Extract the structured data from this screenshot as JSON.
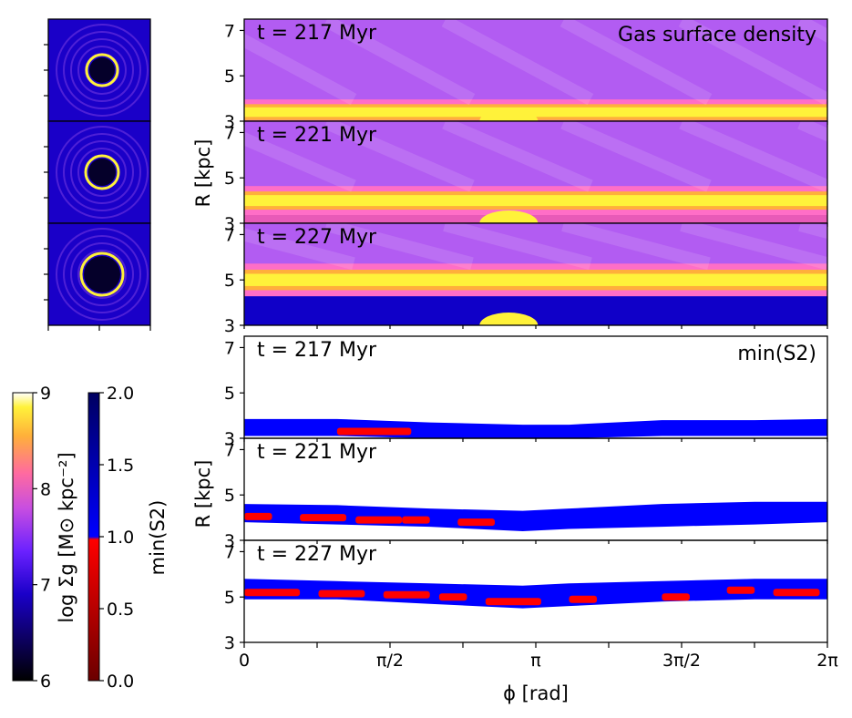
{
  "chart_data": [
    {
      "type": "heatmap",
      "title": "Gas surface density",
      "ylabel": "R [kpc]",
      "xlabel": "ϕ [rad]",
      "xlim": [
        0,
        6.2832
      ],
      "ylim": [
        3,
        7.5
      ],
      "x_ticks": [
        "0",
        "π/2",
        "π",
        "3π/2",
        "2π"
      ],
      "colorbar": {
        "label": "log Σg [M⊙ kpc⁻²]",
        "ticks": [
          "6",
          "7",
          "8",
          "9"
        ],
        "range": [
          6,
          9
        ]
      },
      "panels": [
        {
          "label": "t = 217 Myr",
          "y_ticks": [
            "3",
            "5",
            "7"
          ],
          "ring_radius": 3.4,
          "ring_width": 0.35
        },
        {
          "label": "t = 221 Myr",
          "y_ticks": [
            "3",
            "5",
            "7"
          ],
          "ring_radius": 4.0,
          "ring_width": 0.4
        },
        {
          "label": "t = 227 Myr",
          "y_ticks": [
            "3",
            "5",
            "7"
          ],
          "ring_radius": 5.0,
          "ring_width": 0.45
        }
      ]
    },
    {
      "type": "heatmap",
      "title": "min(S2)",
      "ylabel": "R [kpc]",
      "xlabel": "ϕ [rad]",
      "xlim": [
        0,
        6.2832
      ],
      "ylim": [
        3,
        7.5
      ],
      "x_ticks": [
        "0",
        "π/2",
        "π",
        "3π/2",
        "2π"
      ],
      "colorbar": {
        "label": "min(S2)",
        "ticks": [
          "0.0",
          "0.5",
          "1.0",
          "1.5",
          "2.0"
        ],
        "range": [
          0,
          2
        ]
      },
      "panels": [
        {
          "label": "t = 217 Myr",
          "y_ticks": [
            "3",
            "5",
            "7"
          ],
          "band": [
            [
              0.0,
              3.1,
              3.85
            ],
            [
              1.0,
              3.1,
              3.85
            ],
            [
              2.0,
              3.0,
              3.7
            ],
            [
              3.0,
              2.9,
              3.6
            ],
            [
              3.5,
              3.0,
              3.6
            ],
            [
              4.5,
              3.1,
              3.8
            ],
            [
              5.5,
              3.1,
              3.8
            ],
            [
              6.2832,
              3.1,
              3.85
            ]
          ],
          "low": [
            [
              1.0,
              1.8,
              3.3
            ],
            [
              2.7,
              3.0,
              2.6
            ]
          ]
        },
        {
          "label": "t = 221 Myr",
          "y_ticks": [
            "3",
            "5",
            "7"
          ],
          "band": [
            [
              0.0,
              3.8,
              4.6
            ],
            [
              1.0,
              3.7,
              4.55
            ],
            [
              2.0,
              3.6,
              4.4
            ],
            [
              3.0,
              3.4,
              4.3
            ],
            [
              3.5,
              3.5,
              4.4
            ],
            [
              4.5,
              3.6,
              4.6
            ],
            [
              5.5,
              3.7,
              4.7
            ],
            [
              6.2832,
              3.8,
              4.7
            ]
          ],
          "low": [
            [
              0.0,
              0.3,
              4.05
            ],
            [
              0.6,
              1.1,
              4.0
            ],
            [
              1.2,
              1.7,
              3.9
            ],
            [
              1.7,
              2.0,
              3.9
            ],
            [
              2.3,
              2.7,
              3.8
            ]
          ]
        },
        {
          "label": "t = 227 Myr",
          "y_ticks": [
            "3",
            "5",
            "7"
          ],
          "band": [
            [
              0.0,
              4.9,
              5.8
            ],
            [
              1.0,
              4.9,
              5.7
            ],
            [
              2.0,
              4.7,
              5.6
            ],
            [
              3.0,
              4.5,
              5.5
            ],
            [
              3.5,
              4.6,
              5.6
            ],
            [
              4.5,
              4.8,
              5.7
            ],
            [
              5.5,
              4.9,
              5.8
            ],
            [
              6.2832,
              4.9,
              5.8
            ]
          ],
          "low": [
            [
              0.0,
              0.6,
              5.2
            ],
            [
              0.8,
              1.3,
              5.15
            ],
            [
              1.5,
              2.0,
              5.1
            ],
            [
              2.1,
              2.4,
              5.0
            ],
            [
              2.6,
              3.2,
              4.8
            ],
            [
              3.5,
              3.8,
              4.9
            ],
            [
              4.5,
              4.8,
              5.0
            ],
            [
              5.2,
              5.5,
              5.3
            ],
            [
              5.7,
              6.2,
              5.2
            ]
          ]
        }
      ]
    }
  ],
  "thumbnails": [
    {
      "time": "217 Myr",
      "hole_radius": 14
    },
    {
      "time": "221 Myr",
      "hole_radius": 15
    },
    {
      "time": "227 Myr",
      "hole_radius": 20
    }
  ],
  "colors": {
    "ring_core": "#fff23a",
    "ring_mid": "#ff6ec7",
    "background": "#b25cf2",
    "band": "#0000ff",
    "low": "#ff0000",
    "dark": "#05002a"
  }
}
